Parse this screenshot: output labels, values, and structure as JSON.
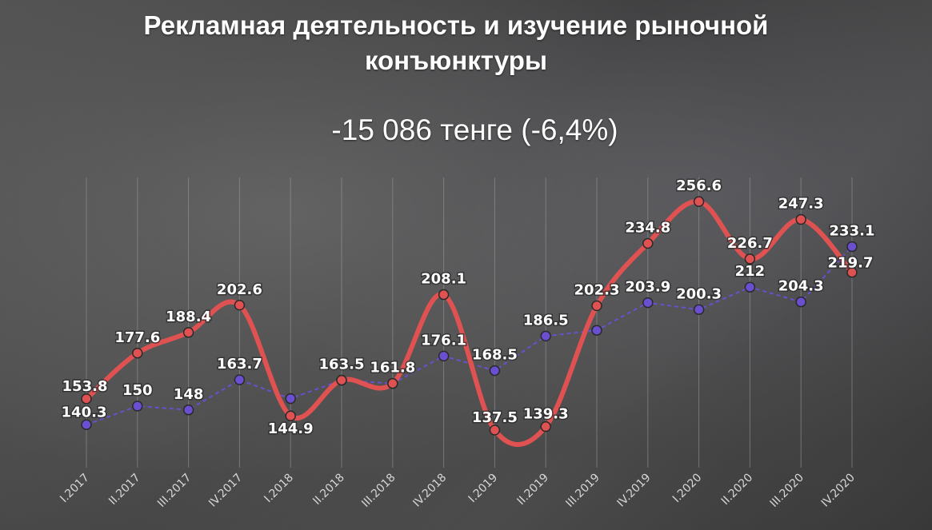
{
  "title": "Рекламная деятельность и изучение рыночной конъюнктуры",
  "subtitle": "-15 086 тенге (-6,4%)",
  "colors": {
    "series_current": "#e05252",
    "series_previous": "#6a4fd0",
    "grid": "#9a9a9a",
    "text": "#ffffff"
  },
  "chart_data": {
    "type": "line",
    "title": "Рекламная деятельность и изучение рыночной конъюнктуры",
    "subtitle": "-15 086 тенге (-6,4%)",
    "xlabel": "",
    "ylabel": "",
    "grid": "vertical",
    "legend": "none",
    "ylim": [
      120,
      270
    ],
    "categories": [
      "I.2017",
      "II.2017",
      "III.2017",
      "IV.2017",
      "I.2018",
      "II.2018",
      "III.2018",
      "IV.2018",
      "I.2019",
      "II.2019",
      "III.2019",
      "IV.2019",
      "I.2020",
      "II.2020",
      "III.2020",
      "IV.2020"
    ],
    "series": [
      {
        "values": [
          153.8,
          177.6,
          188.4,
          202.6,
          144.9,
          163.5,
          161.8,
          208.1,
          137.5,
          139.3,
          202.3,
          234.8,
          256.6,
          226.7,
          247.3,
          219.7
        ],
        "labels": [
          "153.8",
          "177.6",
          "188.4",
          "202.6",
          "144.9",
          "163.5",
          "161.8",
          "208.1",
          "137.5",
          "139.3",
          "202.3",
          "234.8",
          "256.6",
          "226.7",
          "247.3",
          "219.7"
        ],
        "color": "#e05252",
        "style": "smooth-solid"
      },
      {
        "values": [
          140.3,
          150,
          148,
          163.7,
          153.9,
          163.5,
          161.8,
          176.1,
          168.5,
          186.5,
          189.5,
          203.9,
          200.3,
          212,
          204.3,
          233.1
        ],
        "labels": [
          "140.3",
          "150",
          "148",
          "163.7",
          "",
          "",
          "",
          "176.1",
          "168.5",
          "186.5",
          "",
          "203.9",
          "200.3",
          "212",
          "204.3",
          "233.1"
        ],
        "color": "#6a4fd0",
        "style": "dashed"
      }
    ]
  }
}
